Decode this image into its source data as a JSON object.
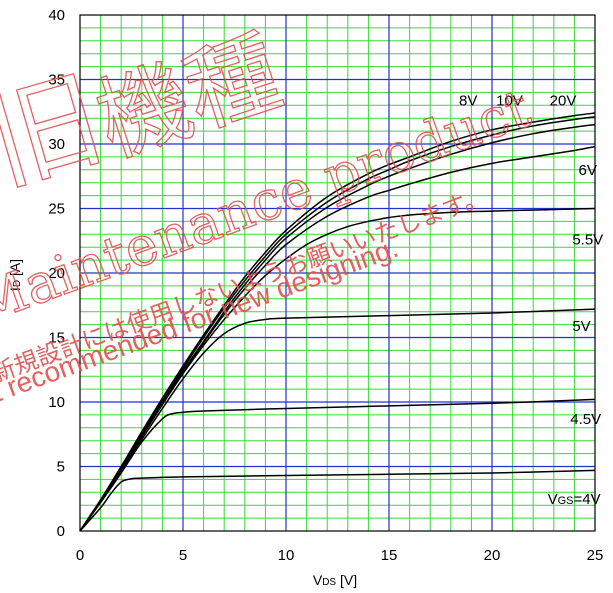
{
  "chart_data": {
    "type": "line",
    "xlabel": "VDS [V]",
    "ylabel": "ID [A]",
    "xlim": [
      0,
      25
    ],
    "ylim": [
      0,
      40
    ],
    "x_ticks": [
      "0",
      "5",
      "10",
      "15",
      "20",
      "25"
    ],
    "y_ticks": [
      "0",
      "5",
      "10",
      "15",
      "20",
      "25",
      "30",
      "35",
      "40"
    ],
    "grid": true,
    "series": [
      {
        "name": "VGS=4V",
        "points": [
          [
            0,
            0
          ],
          [
            1,
            1.8
          ],
          [
            1.5,
            2.9
          ],
          [
            2,
            3.8
          ],
          [
            2.5,
            4.05
          ],
          [
            3,
            4.1
          ],
          [
            5,
            4.2
          ],
          [
            10,
            4.3
          ],
          [
            15,
            4.4
          ],
          [
            20,
            4.5
          ],
          [
            25,
            4.7
          ]
        ]
      },
      {
        "name": "4.5V",
        "points": [
          [
            0,
            0
          ],
          [
            1,
            2.2
          ],
          [
            2,
            4.5
          ],
          [
            3,
            6.9
          ],
          [
            4,
            8.7
          ],
          [
            4.5,
            9.1
          ],
          [
            5,
            9.2
          ],
          [
            6,
            9.3
          ],
          [
            10,
            9.5
          ],
          [
            15,
            9.7
          ],
          [
            20,
            9.9
          ],
          [
            25,
            10.2
          ]
        ]
      },
      {
        "name": "5V",
        "points": [
          [
            0,
            0
          ],
          [
            1,
            2.3
          ],
          [
            2,
            4.7
          ],
          [
            3,
            7.1
          ],
          [
            4,
            9.5
          ],
          [
            5,
            11.8
          ],
          [
            6,
            13.8
          ],
          [
            7,
            15.3
          ],
          [
            8,
            16.1
          ],
          [
            9,
            16.4
          ],
          [
            10,
            16.5
          ],
          [
            15,
            16.7
          ],
          [
            20,
            16.9
          ],
          [
            25,
            17.2
          ]
        ]
      },
      {
        "name": "5.5V",
        "points": [
          [
            0,
            0
          ],
          [
            1,
            2.3
          ],
          [
            2,
            4.8
          ],
          [
            3,
            7.3
          ],
          [
            4,
            9.8
          ],
          [
            5,
            12.2
          ],
          [
            6,
            14.4
          ],
          [
            7,
            16.4
          ],
          [
            8,
            18.2
          ],
          [
            9,
            19.8
          ],
          [
            10,
            21.1
          ],
          [
            11,
            22.2
          ],
          [
            12,
            23.0
          ],
          [
            13,
            23.6
          ],
          [
            14,
            24.0
          ],
          [
            15,
            24.3
          ],
          [
            16,
            24.5
          ],
          [
            18,
            24.7
          ],
          [
            20,
            24.8
          ],
          [
            25,
            25.0
          ]
        ]
      },
      {
        "name": "6V",
        "points": [
          [
            0,
            0
          ],
          [
            1,
            2.4
          ],
          [
            2,
            4.9
          ],
          [
            3,
            7.4
          ],
          [
            4,
            9.9
          ],
          [
            5,
            12.3
          ],
          [
            6,
            14.6
          ],
          [
            7,
            16.8
          ],
          [
            8,
            18.8
          ],
          [
            9,
            20.6
          ],
          [
            10,
            22.2
          ],
          [
            12,
            24.4
          ],
          [
            14,
            25.9
          ],
          [
            15,
            26.4
          ],
          [
            16,
            26.9
          ],
          [
            18,
            27.8
          ],
          [
            20,
            28.5
          ],
          [
            22,
            29.0
          ],
          [
            24,
            29.5
          ],
          [
            25,
            29.8
          ]
        ]
      },
      {
        "name": "8V",
        "points": [
          [
            0,
            0
          ],
          [
            1,
            2.4
          ],
          [
            2,
            4.9
          ],
          [
            3,
            7.5
          ],
          [
            4,
            10.0
          ],
          [
            5,
            12.4
          ],
          [
            6,
            14.7
          ],
          [
            7,
            17.0
          ],
          [
            8,
            19.1
          ],
          [
            9,
            21.0
          ],
          [
            10,
            22.7
          ],
          [
            12,
            25.1
          ],
          [
            14,
            26.8
          ],
          [
            15,
            27.5
          ],
          [
            16,
            28.1
          ],
          [
            18,
            29.2
          ],
          [
            20,
            30.1
          ],
          [
            22,
            30.8
          ],
          [
            24,
            31.3
          ],
          [
            25,
            31.5
          ]
        ]
      },
      {
        "name": "10V",
        "points": [
          [
            0,
            0
          ],
          [
            1,
            2.4
          ],
          [
            2,
            5.0
          ],
          [
            3,
            7.6
          ],
          [
            4,
            10.1
          ],
          [
            5,
            12.6
          ],
          [
            6,
            15.0
          ],
          [
            7,
            17.3
          ],
          [
            8,
            19.4
          ],
          [
            9,
            21.3
          ],
          [
            10,
            23.0
          ],
          [
            12,
            25.5
          ],
          [
            14,
            27.3
          ],
          [
            15,
            28.0
          ],
          [
            16,
            28.7
          ],
          [
            18,
            29.8
          ],
          [
            20,
            30.7
          ],
          [
            22,
            31.4
          ],
          [
            24,
            31.9
          ],
          [
            25,
            32.1
          ]
        ]
      },
      {
        "name": "20V",
        "points": [
          [
            0,
            0
          ],
          [
            1,
            2.4
          ],
          [
            2,
            5.0
          ],
          [
            3,
            7.7
          ],
          [
            4,
            10.3
          ],
          [
            5,
            12.8
          ],
          [
            6,
            15.2
          ],
          [
            7,
            17.5
          ],
          [
            8,
            19.7
          ],
          [
            9,
            21.6
          ],
          [
            10,
            23.3
          ],
          [
            12,
            25.9
          ],
          [
            14,
            27.7
          ],
          [
            15,
            28.4
          ],
          [
            16,
            29.0
          ],
          [
            18,
            30.2
          ],
          [
            20,
            31.1
          ],
          [
            22,
            31.7
          ],
          [
            24,
            32.2
          ],
          [
            25,
            32.4
          ]
        ]
      }
    ],
    "curve_labels": [
      {
        "text": "20V",
        "x": 22.8,
        "y": 33.0
      },
      {
        "text": "10V",
        "x": 20.2,
        "y": 33.0
      },
      {
        "text": "8V",
        "x": 18.4,
        "y": 33.0
      },
      {
        "text": "6V",
        "x": 24.2,
        "y": 27.6
      },
      {
        "text": "5.5V",
        "x": 23.9,
        "y": 22.2
      },
      {
        "text": "5V",
        "x": 23.9,
        "y": 15.5
      },
      {
        "text": "4.5V",
        "x": 23.8,
        "y": 8.3
      },
      {
        "text": "VGS=4V",
        "x": 22.7,
        "y": 2.1
      }
    ]
  },
  "watermark": {
    "kanji_1": "旧",
    "kanji_2": "機種",
    "en_1": "Maintenance product",
    "jp": "新規設計には使用しないようお願いいたします。",
    "en_2": "Not recommended for new designing."
  },
  "colors": {
    "grid_minor": "#33dd33",
    "grid_major": "#2233cc",
    "curve": "#000000",
    "watermark": "#e05050"
  }
}
